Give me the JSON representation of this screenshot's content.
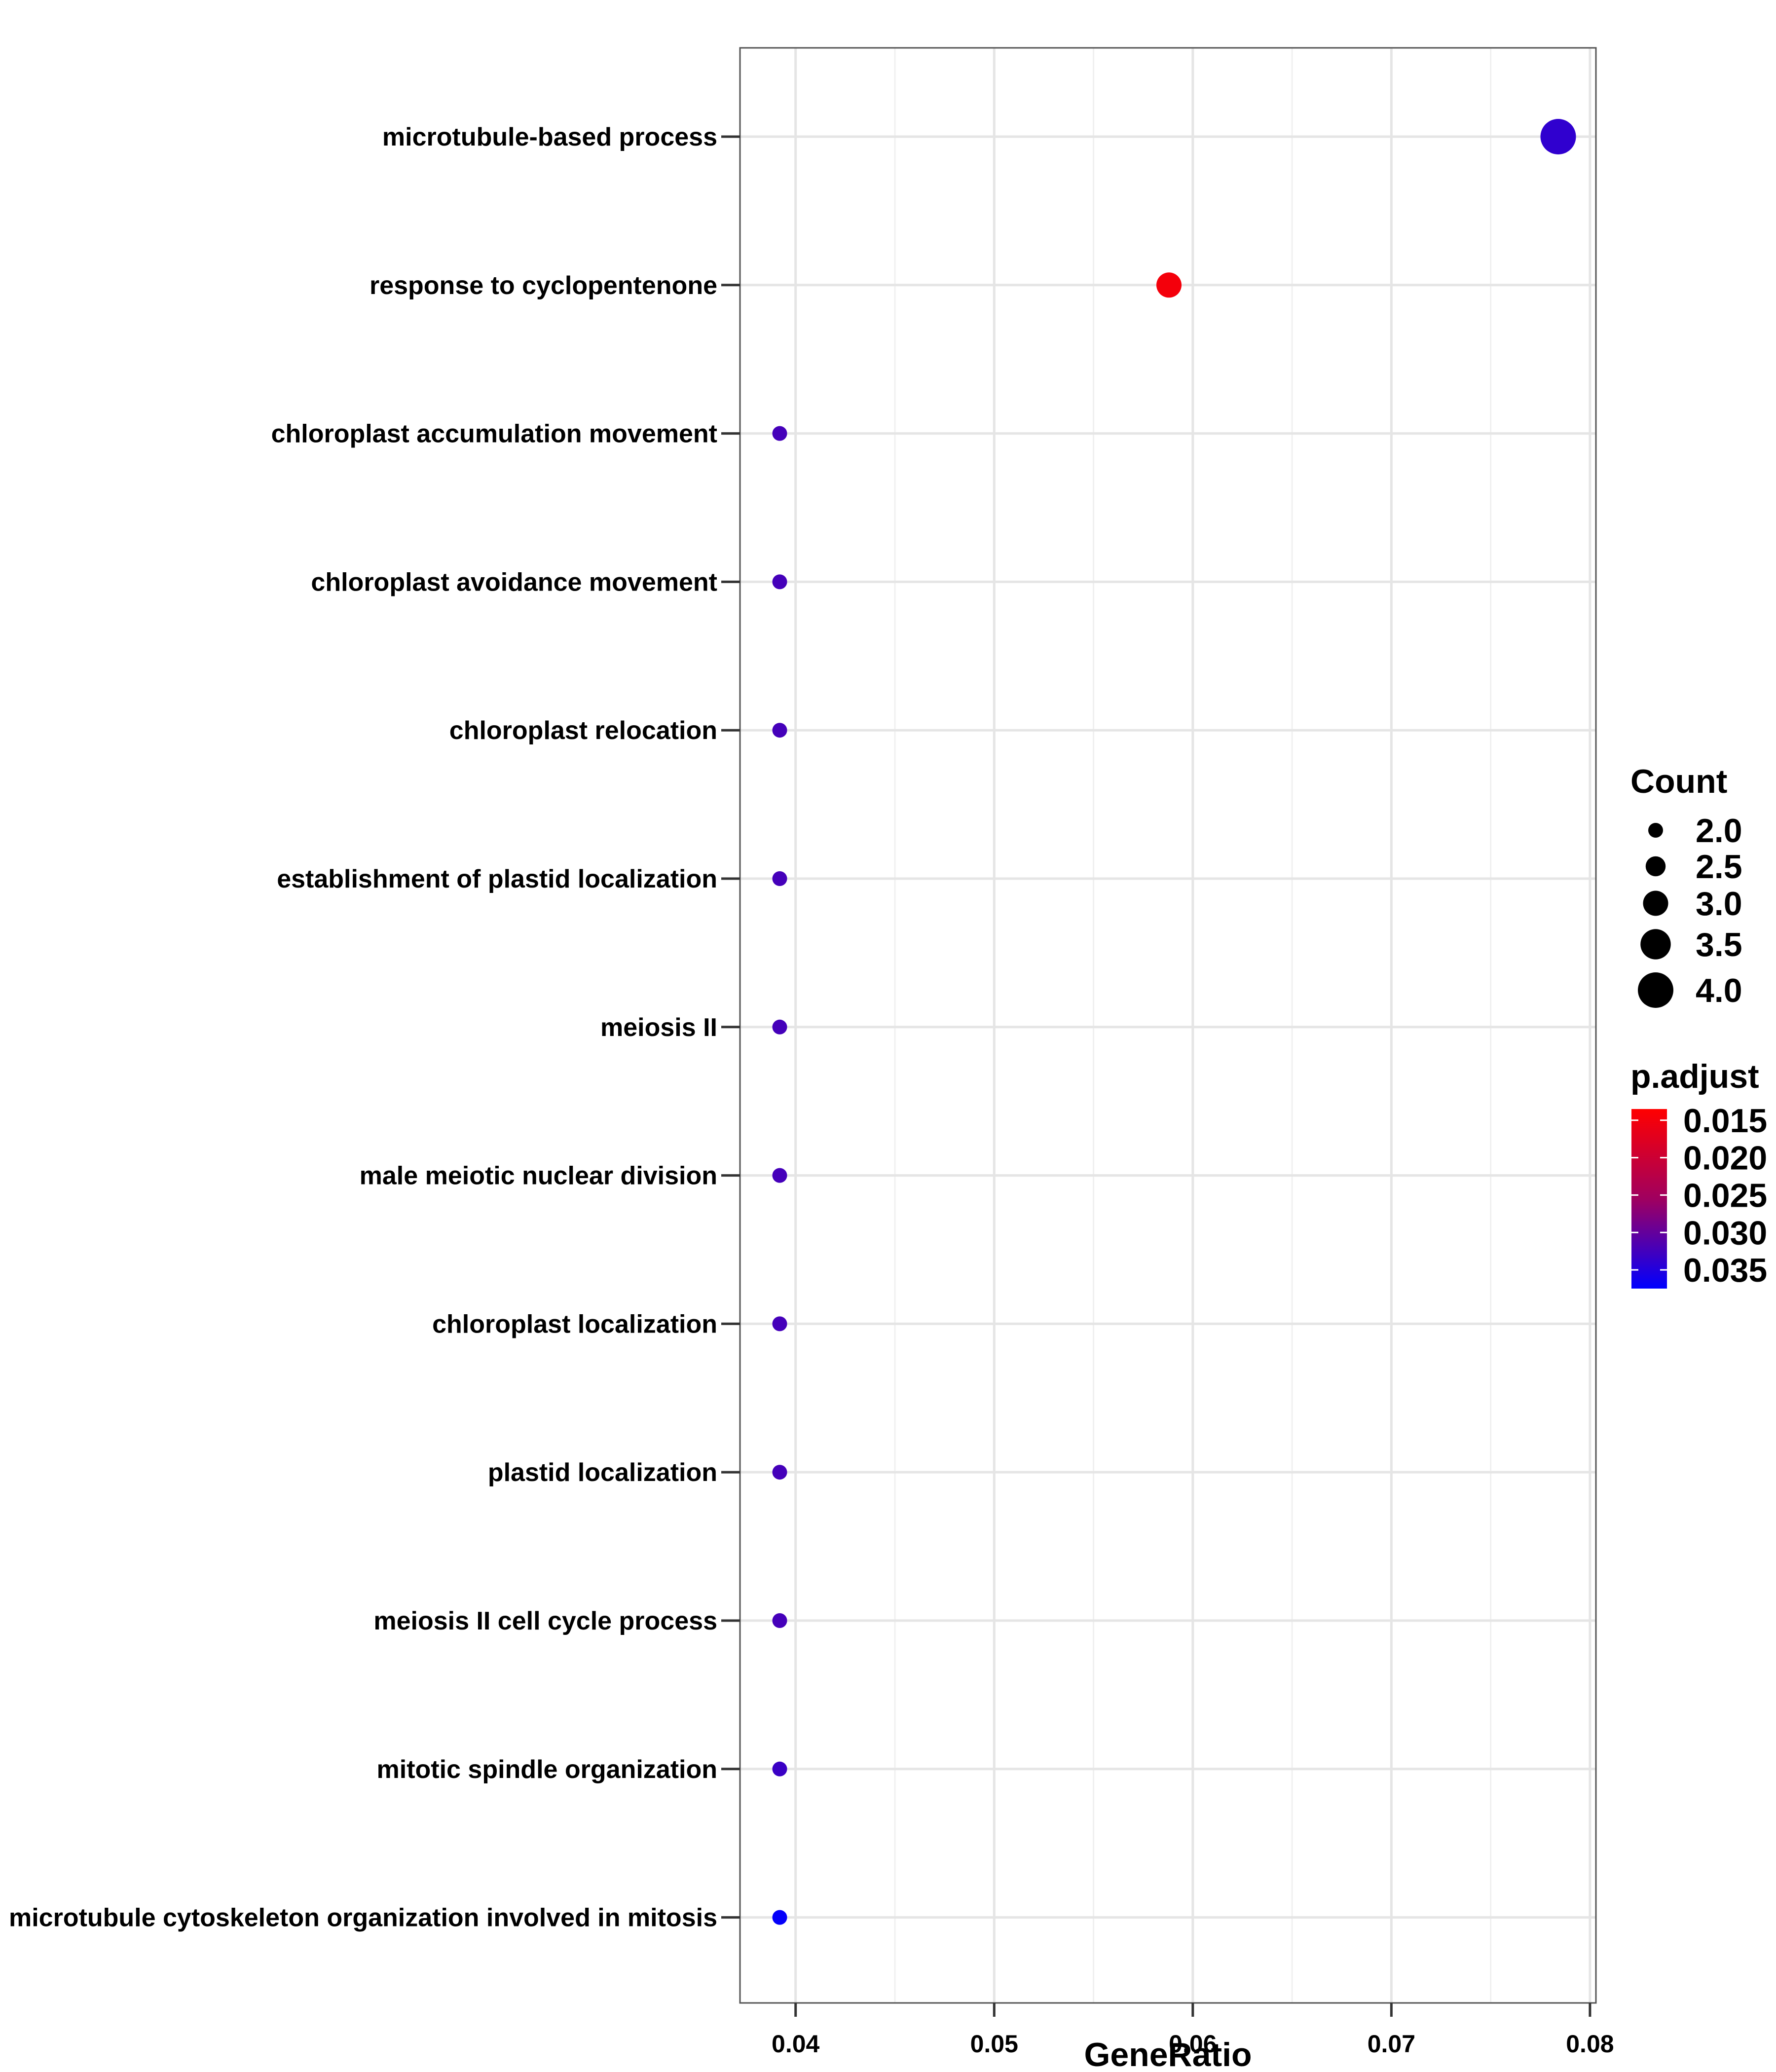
{
  "chart_data": {
    "type": "scatter",
    "title": "",
    "xlabel": "GeneRatio",
    "ylabel": "",
    "xlim": [
      0.0372,
      0.0803
    ],
    "x_ticks": [
      0.04,
      0.05,
      0.06,
      0.07,
      0.08
    ],
    "x_tick_labels": [
      "0.04",
      "0.05",
      "0.06",
      "0.07",
      "0.08"
    ],
    "grid": true,
    "legend_position": "right",
    "categories": [
      "microtubule-based process",
      "response to cyclopentenone",
      "chloroplast accumulation movement",
      "chloroplast avoidance movement",
      "chloroplast relocation",
      "establishment of plastid localization",
      "meiosis II",
      "male meiotic nuclear division",
      "chloroplast localization",
      "plastid localization",
      "meiosis II cell cycle process",
      "mitotic spindle organization",
      "microtubule cytoskeleton organization involved in mitosis"
    ],
    "points": [
      {
        "term": "microtubule-based process",
        "x": 0.0784,
        "count": 4,
        "p_adjust": 0.033
      },
      {
        "term": "response to cyclopentenone",
        "x": 0.0588,
        "count": 3,
        "p_adjust": 0.0145
      },
      {
        "term": "chloroplast accumulation movement",
        "x": 0.0392,
        "count": 2,
        "p_adjust": 0.031
      },
      {
        "term": "chloroplast avoidance movement",
        "x": 0.0392,
        "count": 2,
        "p_adjust": 0.031
      },
      {
        "term": "chloroplast relocation",
        "x": 0.0392,
        "count": 2,
        "p_adjust": 0.031
      },
      {
        "term": "establishment of plastid localization",
        "x": 0.0392,
        "count": 2,
        "p_adjust": 0.031
      },
      {
        "term": "meiosis II",
        "x": 0.0392,
        "count": 2,
        "p_adjust": 0.031
      },
      {
        "term": "male meiotic nuclear division",
        "x": 0.0392,
        "count": 2,
        "p_adjust": 0.031
      },
      {
        "term": "chloroplast localization",
        "x": 0.0392,
        "count": 2,
        "p_adjust": 0.031
      },
      {
        "term": "plastid localization",
        "x": 0.0392,
        "count": 2,
        "p_adjust": 0.031
      },
      {
        "term": "meiosis II cell cycle process",
        "x": 0.0392,
        "count": 2,
        "p_adjust": 0.031
      },
      {
        "term": "mitotic spindle organization",
        "x": 0.0392,
        "count": 2,
        "p_adjust": 0.032
      },
      {
        "term": "microtubule cytoskeleton organization involved in mitosis",
        "x": 0.0392,
        "count": 2,
        "p_adjust": 0.037
      }
    ],
    "size_legend": {
      "title": "Count",
      "values": [
        2.0,
        2.5,
        3.0,
        3.5,
        4.0
      ],
      "labels": [
        "2.0",
        "2.5",
        "3.0",
        "3.5",
        "4.0"
      ]
    },
    "color_legend": {
      "title": "p.adjust",
      "range": [
        0.0135,
        0.0375
      ],
      "low_color": "#ff0000",
      "high_color": "#0000ff",
      "breaks": [
        0.015,
        0.02,
        0.025,
        0.03,
        0.035
      ],
      "labels": [
        "0.015",
        "0.020",
        "0.025",
        "0.030",
        "0.035"
      ]
    }
  }
}
